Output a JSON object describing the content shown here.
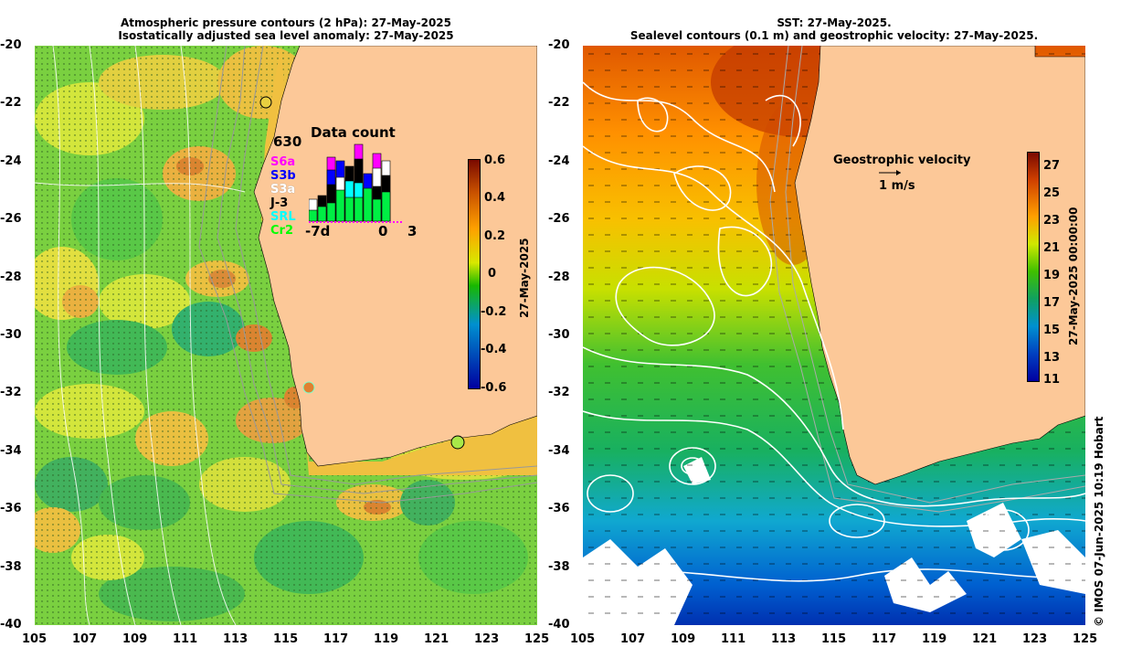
{
  "left_map": {
    "title_line1": "Atmospheric pressure contours (2 hPa): 27-May-2025",
    "title_line2": "Isostatically adjusted sea level anomaly: 27-May-2025",
    "y_ticks": [
      "-20",
      "-22",
      "-24",
      "-26",
      "-28",
      "-30",
      "-32",
      "-34",
      "-36",
      "-38",
      "-40"
    ],
    "x_ticks": [
      "105",
      "107",
      "109",
      "111",
      "113",
      "115",
      "117",
      "119",
      "121",
      "123",
      "125"
    ],
    "colorbar": {
      "ticks": [
        "0.6",
        "0.4",
        "0.2",
        "0",
        "-0.2",
        "-0.4",
        "-0.6"
      ],
      "label": "27-May-2025",
      "colors": [
        "#7a0a00",
        "#c85000",
        "#ffa000",
        "#d8e800",
        "#18b800",
        "#0090d0",
        "#0000a0"
      ]
    },
    "data_count": {
      "title": "Data count",
      "max": "630",
      "satellites": [
        {
          "name": "S6a",
          "color": "#ff00ff"
        },
        {
          "name": "S3b",
          "color": "#0000ff"
        },
        {
          "name": "S3a",
          "color": "#ffffff"
        },
        {
          "name": "J-3",
          "color": "#000000"
        },
        {
          "name": "SRL",
          "color": "#00ffff"
        },
        {
          "name": "Cr2",
          "color": "#00ff00"
        }
      ],
      "x_labels": [
        "-7d",
        "0",
        "3"
      ]
    }
  },
  "right_map": {
    "title_line1": "SST: 27-May-2025.",
    "title_line2": "Sealevel contours (0.1 m) and geostrophic velocity: 27-May-2025.",
    "y_ticks": [
      "-20",
      "-22",
      "-24",
      "-26",
      "-28",
      "-30",
      "-32",
      "-34",
      "-36",
      "-38",
      "-40"
    ],
    "x_ticks": [
      "105",
      "107",
      "109",
      "111",
      "113",
      "115",
      "117",
      "119",
      "121",
      "123",
      "125"
    ],
    "colorbar": {
      "ticks": [
        "27",
        "25",
        "23",
        "21",
        "19",
        "17",
        "15",
        "13",
        "11"
      ],
      "label": "27-May-2025 00:00:00",
      "colors": [
        "#7a0a00",
        "#d04000",
        "#ffa000",
        "#d0e800",
        "#40c000",
        "#10a060",
        "#0090d0",
        "#0040c0",
        "#0000a0"
      ]
    },
    "velocity_legend": {
      "title": "Geostrophic velocity",
      "scale": "1 m/s"
    }
  },
  "credit": "© IMOS 07-Jun-2025 10:19 Hobart",
  "colors": {
    "land": "#fcc898",
    "left_ocean_green": "#6ccc3c",
    "left_ocean_yellow": "#d8e83c",
    "contour": "#ffffff"
  }
}
